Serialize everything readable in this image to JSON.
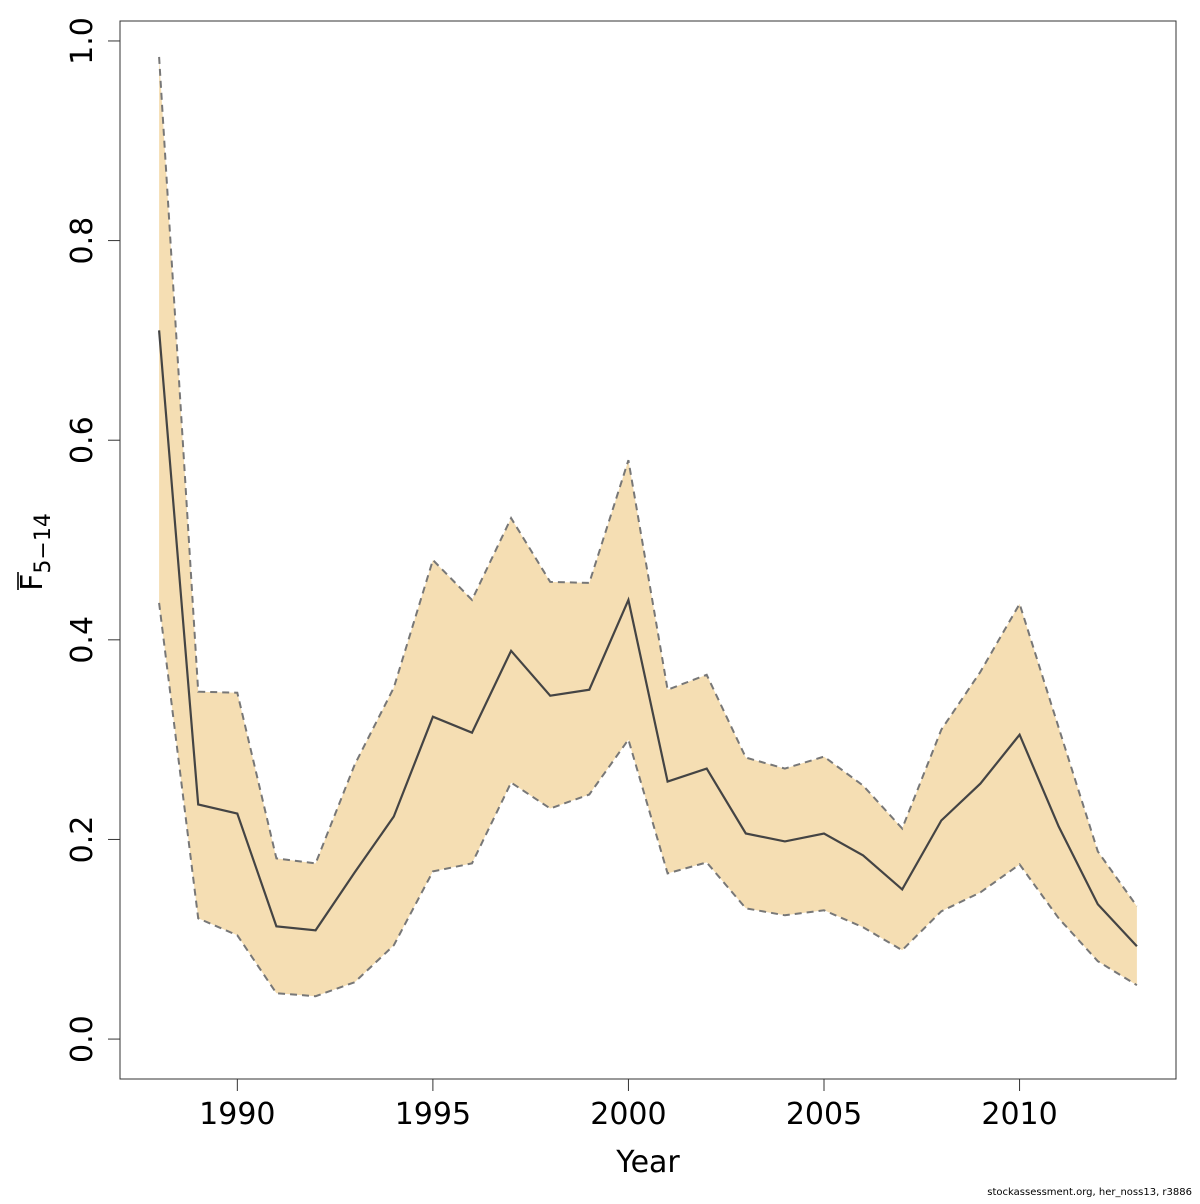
{
  "chart_data": {
    "type": "line",
    "xlabel": "Year",
    "ylabel": {
      "main": "F",
      "sub": "5−14"
    },
    "xlim": [
      1987,
      2014
    ],
    "ylim": [
      -0.04,
      1.02
    ],
    "x_ticks": [
      1990,
      1995,
      2000,
      2005,
      2010
    ],
    "y_ticks": [
      0.0,
      0.2,
      0.4,
      0.6,
      0.8,
      1.0
    ],
    "y_tick_labels": [
      "0.0",
      "0.2",
      "0.4",
      "0.6",
      "0.8",
      "1.0"
    ],
    "x": [
      1988,
      1989,
      1990,
      1991,
      1992,
      1993,
      1994,
      1995,
      1996,
      1997,
      1998,
      1999,
      2000,
      2001,
      2002,
      2003,
      2004,
      2005,
      2006,
      2007,
      2008,
      2009,
      2010,
      2011,
      2012,
      2013
    ],
    "series": [
      {
        "role": "estimate",
        "values": [
          0.71,
          0.235,
          0.226,
          0.113,
          0.109,
          0.167,
          0.223,
          0.323,
          0.307,
          0.389,
          0.344,
          0.35,
          0.44,
          0.258,
          0.271,
          0.206,
          0.198,
          0.206,
          0.184,
          0.15,
          0.219,
          0.256,
          0.305,
          0.213,
          0.135,
          0.093
        ]
      },
      {
        "role": "upper",
        "values": [
          0.984,
          0.348,
          0.347,
          0.181,
          0.176,
          0.275,
          0.352,
          0.48,
          0.44,
          0.522,
          0.458,
          0.457,
          0.58,
          0.35,
          0.365,
          0.282,
          0.271,
          0.283,
          0.254,
          0.211,
          0.31,
          0.368,
          0.436,
          0.312,
          0.188,
          0.133
        ]
      },
      {
        "role": "lower",
        "values": [
          0.437,
          0.121,
          0.104,
          0.046,
          0.043,
          0.057,
          0.094,
          0.168,
          0.176,
          0.257,
          0.231,
          0.245,
          0.3,
          0.166,
          0.177,
          0.131,
          0.124,
          0.129,
          0.112,
          0.089,
          0.128,
          0.147,
          0.175,
          0.121,
          0.078,
          0.054
        ]
      }
    ],
    "colors": {
      "band": "#f5deb3",
      "line": "#444444",
      "ci_line": "#777777",
      "axis": "#333333"
    },
    "grid": false
  },
  "footer": "stockassessment.org, her_noss13, r3886"
}
